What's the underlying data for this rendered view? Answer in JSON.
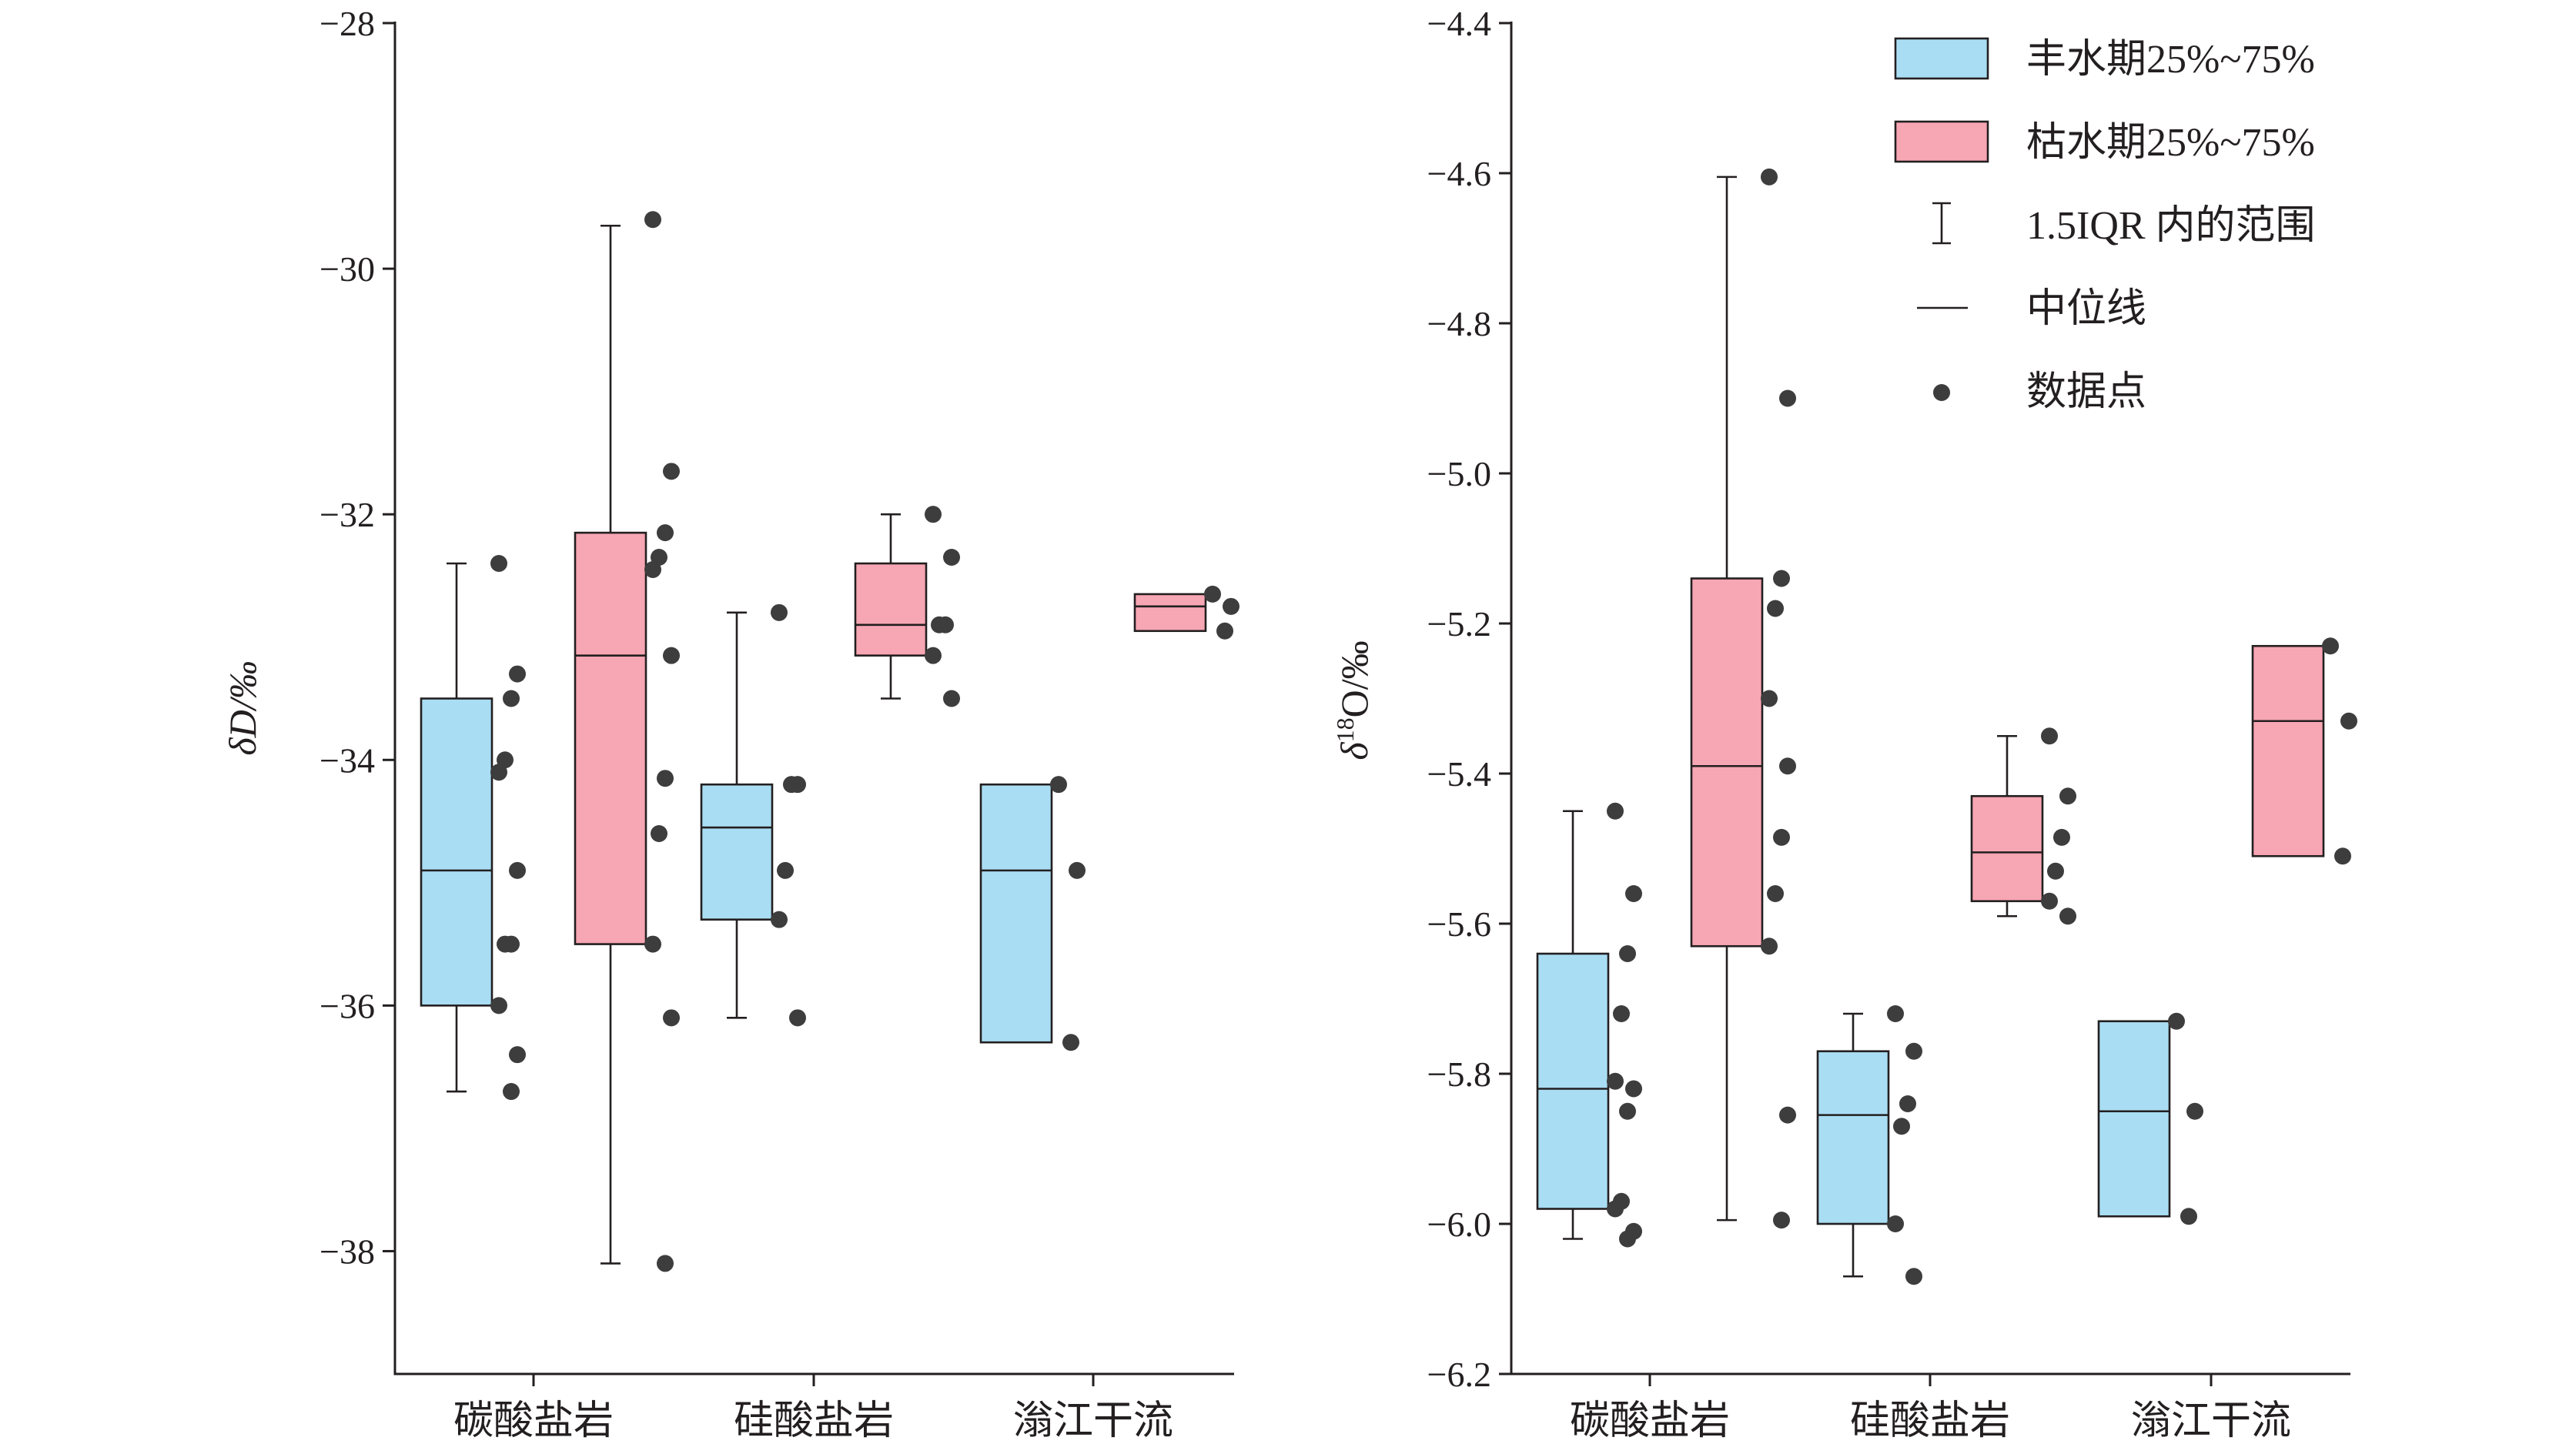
{
  "colors": {
    "wet_fill": "#a9ddf3",
    "dry_fill": "#f7a6b3",
    "point": "#3d3d3d",
    "ink": "#231f20"
  },
  "legend": {
    "wet": "丰水期25%~75%",
    "dry": "枯水期25%~75%",
    "range": "1.5IQR 内的范围",
    "median": "中位线",
    "points": "数据点"
  },
  "chart_data": [
    {
      "type": "box",
      "ylabel": "δD/‰",
      "ylim": [
        -39,
        -28
      ],
      "yticks": [
        -28,
        -30,
        -32,
        -34,
        -36,
        -38
      ],
      "ytick_labels": [
        "−28",
        "−30",
        "−32",
        "−34",
        "−36",
        "−38"
      ],
      "categories": [
        "碳酸盐岩",
        "硅酸盐岩",
        "滃江干流"
      ],
      "series": [
        {
          "name": "丰水期25%~75%",
          "boxes": [
            {
              "q1": -36.0,
              "median": -34.9,
              "q3": -33.5,
              "whisker_low": -36.7,
              "whisker_high": -32.4,
              "points": [
                -32.4,
                -33.3,
                -33.5,
                -34.0,
                -34.1,
                -34.9,
                -35.5,
                -35.5,
                -36.0,
                -36.4,
                -36.7
              ]
            },
            {
              "q1": -35.3,
              "median": -34.55,
              "q3": -34.2,
              "whisker_low": -36.1,
              "whisker_high": -32.8,
              "points": [
                -32.8,
                -34.2,
                -34.2,
                -34.9,
                -35.3,
                -36.1
              ]
            },
            {
              "q1": -36.3,
              "median": -34.9,
              "q3": -34.2,
              "whisker_low": null,
              "whisker_high": null,
              "points": [
                -34.2,
                -34.9,
                -36.3
              ]
            }
          ]
        },
        {
          "name": "枯水期25%~75%",
          "boxes": [
            {
              "q1": -35.5,
              "median": -33.15,
              "q3": -32.15,
              "whisker_low": -38.1,
              "whisker_high": -29.65,
              "points": [
                -29.6,
                -31.65,
                -32.15,
                -32.35,
                -32.45,
                -33.15,
                -34.15,
                -34.6,
                -35.5,
                -36.1,
                -38.1
              ]
            },
            {
              "q1": -33.15,
              "median": -32.9,
              "q3": -32.4,
              "whisker_low": -33.5,
              "whisker_high": -32.0,
              "points": [
                -32.0,
                -32.35,
                -32.9,
                -32.9,
                -33.15,
                -33.5
              ]
            },
            {
              "q1": -32.95,
              "median": -32.75,
              "q3": -32.65,
              "whisker_low": null,
              "whisker_high": null,
              "points": [
                -32.65,
                -32.75,
                -32.95
              ]
            }
          ]
        }
      ]
    },
    {
      "type": "box",
      "ylabel": "δ18O/‰",
      "ylim": [
        -6.2,
        -4.4
      ],
      "yticks": [
        -4.4,
        -4.6,
        -4.8,
        -5.0,
        -5.2,
        -5.4,
        -5.6,
        -5.8,
        -6.0,
        -6.2
      ],
      "ytick_labels": [
        "−4.4",
        "−4.6",
        "−4.8",
        "−5.0",
        "−5.2",
        "−5.4",
        "−5.6",
        "−5.8",
        "−6.0",
        "−6.2"
      ],
      "categories": [
        "碳酸盐岩",
        "硅酸盐岩",
        "滃江干流"
      ],
      "series": [
        {
          "name": "丰水期25%~75%",
          "boxes": [
            {
              "q1": -5.98,
              "median": -5.82,
              "q3": -5.64,
              "whisker_low": -6.02,
              "whisker_high": -5.45,
              "points": [
                -5.45,
                -5.56,
                -5.64,
                -5.72,
                -5.81,
                -5.82,
                -5.85,
                -5.97,
                -5.98,
                -6.01,
                -6.02
              ]
            },
            {
              "q1": -6.0,
              "median": -5.855,
              "q3": -5.77,
              "whisker_low": -6.07,
              "whisker_high": -5.72,
              "points": [
                -5.72,
                -5.77,
                -5.84,
                -5.87,
                -6.0,
                -6.07
              ]
            },
            {
              "q1": -5.99,
              "median": -5.85,
              "q3": -5.73,
              "whisker_low": null,
              "whisker_high": null,
              "points": [
                -5.73,
                -5.85,
                -5.99
              ]
            }
          ]
        },
        {
          "name": "枯水期25%~75%",
          "boxes": [
            {
              "q1": -5.63,
              "median": -5.39,
              "q3": -5.14,
              "whisker_low": -5.995,
              "whisker_high": -4.605,
              "points": [
                -4.605,
                -4.9,
                -5.14,
                -5.18,
                -5.3,
                -5.39,
                -5.485,
                -5.56,
                -5.63,
                -5.855,
                -5.995
              ]
            },
            {
              "q1": -5.57,
              "median": -5.505,
              "q3": -5.43,
              "whisker_low": -5.59,
              "whisker_high": -5.35,
              "points": [
                -5.35,
                -5.43,
                -5.485,
                -5.53,
                -5.57,
                -5.59
              ]
            },
            {
              "q1": -5.51,
              "median": -5.33,
              "q3": -5.23,
              "whisker_low": null,
              "whisker_high": null,
              "points": [
                -5.23,
                -5.33,
                -5.51
              ]
            }
          ]
        }
      ]
    }
  ]
}
